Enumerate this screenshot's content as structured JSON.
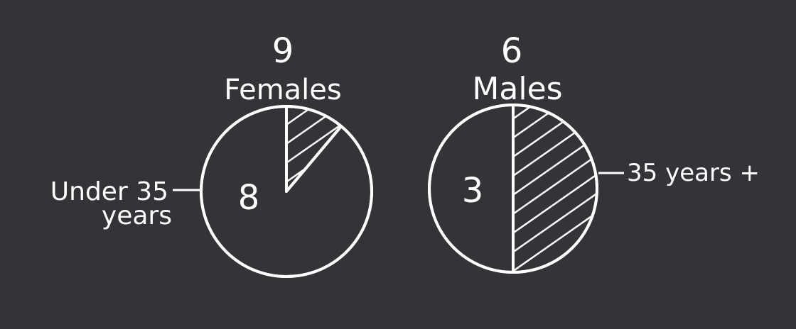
{
  "chart_data": [
    {
      "type": "pie",
      "total": "9",
      "title": "Females",
      "slices": [
        {
          "label": "Under 35 years",
          "value": 8,
          "shown": "8"
        },
        {
          "label": "",
          "value": 1,
          "shown": ""
        }
      ],
      "hatched_slice": 1,
      "callout": {
        "text_lines": [
          "Under 35",
          "years"
        ],
        "side": "left"
      }
    },
    {
      "type": "pie",
      "total": "6",
      "title": "Males",
      "slices": [
        {
          "label": "",
          "value": 3,
          "shown": "3"
        },
        {
          "label": "35 years +",
          "value": 3,
          "shown": ""
        }
      ],
      "hatched_slice": 1,
      "callout": {
        "text_lines": [
          "35 years +"
        ],
        "side": "right"
      }
    }
  ],
  "colors": {
    "background": "#333437",
    "ink": "#ffffff"
  }
}
